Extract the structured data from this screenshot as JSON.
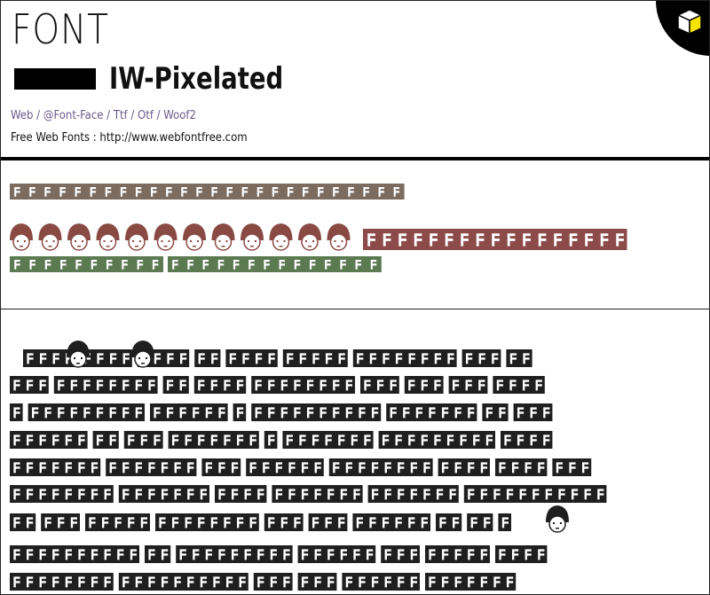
{
  "header": {
    "title": "FONT",
    "font_name": "IW-Pixelated",
    "formats": "Web / @Font-Face / Ttf / Otf / Woof2",
    "source": "Free Web Fonts : http://www.webfontfree.com"
  }
}
